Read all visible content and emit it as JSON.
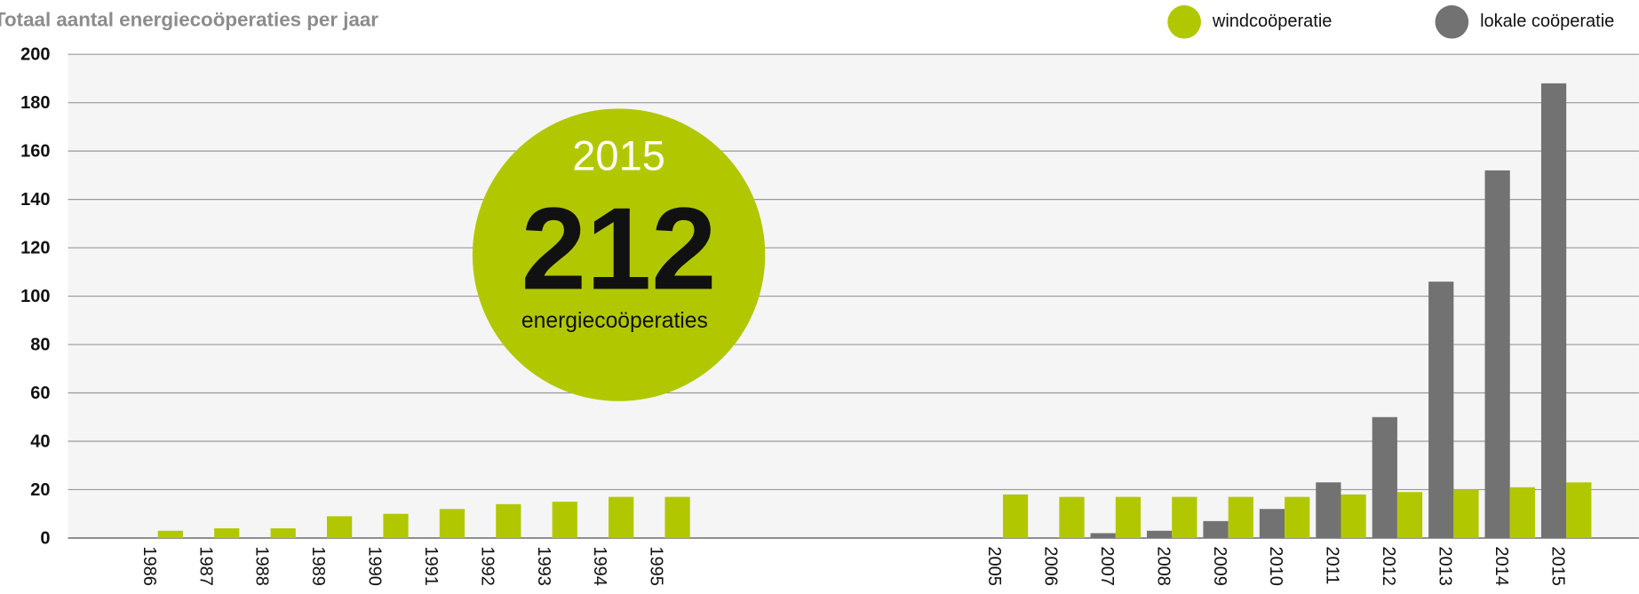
{
  "chart_data": {
    "type": "bar",
    "title": "Totaal aantal energiecoöperaties per jaar",
    "categories": [
      "1986",
      "1987",
      "1988",
      "1989",
      "1990",
      "1991",
      "1992",
      "1993",
      "1994",
      "1995",
      null,
      null,
      null,
      null,
      null,
      "2005",
      "2006",
      "2007",
      "2008",
      "2009",
      "2010",
      "2011",
      "2012",
      "2013",
      "2014",
      "2015"
    ],
    "series": [
      {
        "name": "lokale coöperatie",
        "color": "#727272",
        "values": [
          null,
          null,
          null,
          null,
          null,
          null,
          null,
          null,
          null,
          null,
          null,
          null,
          null,
          null,
          null,
          null,
          null,
          2,
          3,
          7,
          12,
          23,
          50,
          106,
          152,
          188
        ]
      },
      {
        "name": "windcoöperatie",
        "color": "#b1c800",
        "values": [
          3,
          4,
          4,
          9,
          10,
          12,
          14,
          15,
          17,
          17,
          null,
          null,
          null,
          null,
          null,
          18,
          17,
          17,
          17,
          17,
          17,
          18,
          19,
          20,
          21,
          23
        ]
      }
    ],
    "legend_order": [
      "windcoöperatie",
      "lokale coöperatie"
    ],
    "ylim": [
      0,
      200
    ],
    "yticks": [
      0,
      20,
      40,
      60,
      80,
      100,
      120,
      140,
      160,
      180,
      200
    ],
    "grid": true,
    "annotations": [
      "2015",
      "212",
      "energiecoöperaties"
    ],
    "annotation_color": "#b1c800"
  }
}
